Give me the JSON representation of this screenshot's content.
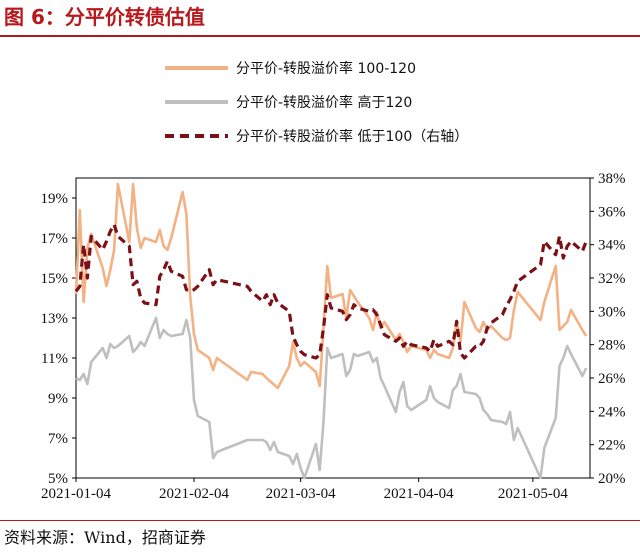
{
  "header": {
    "title": "图 6：分平价转债估值"
  },
  "footer": {
    "source": "资料来源：Wind，招商证券"
  },
  "colors": {
    "accent": "#b8171c",
    "series_100_120": "#f4b184",
    "series_above_120": "#bfbfbf",
    "series_below_100": "#7b1016"
  },
  "chart_data": {
    "type": "line",
    "title": "",
    "xlabel": "",
    "ylabel": "",
    "x_tick_labels": [
      "2021-01-04",
      "2021-02-04",
      "2021-03-04",
      "2021-04-04",
      "2021-05-04"
    ],
    "left_axis": {
      "range": [
        5,
        20
      ],
      "tick_labels": [
        "5%",
        "7%",
        "9%",
        "11%",
        "13%",
        "15%",
        "17%",
        "19%"
      ]
    },
    "right_axis": {
      "range": [
        20,
        38
      ],
      "tick_labels": [
        "20%",
        "22%",
        "24%",
        "26%",
        "28%",
        "30%",
        "32%",
        "34%",
        "36%",
        "38%"
      ]
    },
    "legend_position": "top",
    "series": [
      {
        "name": "分平价-转股溢价率 100-120",
        "axis": "left",
        "style": "solid",
        "points": [
          [
            "2021-01-04",
            14.2
          ],
          [
            "2021-01-05",
            18.4
          ],
          [
            "2021-01-06",
            13.8
          ],
          [
            "2021-01-07",
            16.5
          ],
          [
            "2021-01-08",
            17.2
          ],
          [
            "2021-01-11",
            15.5
          ],
          [
            "2021-01-12",
            14.6
          ],
          [
            "2021-01-13",
            15.4
          ],
          [
            "2021-01-14",
            16.4
          ],
          [
            "2021-01-15",
            19.7
          ],
          [
            "2021-01-18",
            16.8
          ],
          [
            "2021-01-19",
            19.7
          ],
          [
            "2021-01-20",
            17.5
          ],
          [
            "2021-01-21",
            16.5
          ],
          [
            "2021-01-22",
            17.0
          ],
          [
            "2021-01-25",
            16.8
          ],
          [
            "2021-01-26",
            17.4
          ],
          [
            "2021-01-27",
            16.6
          ],
          [
            "2021-01-28",
            16.4
          ],
          [
            "2021-01-29",
            17.0
          ],
          [
            "2021-02-01",
            19.3
          ],
          [
            "2021-02-02",
            18.2
          ],
          [
            "2021-02-03",
            14.1
          ],
          [
            "2021-02-04",
            12.2
          ],
          [
            "2021-02-05",
            11.4
          ],
          [
            "2021-02-08",
            11.0
          ],
          [
            "2021-02-09",
            10.4
          ],
          [
            "2021-02-10",
            11.0
          ],
          [
            "2021-02-18",
            9.9
          ],
          [
            "2021-02-19",
            10.3
          ],
          [
            "2021-02-22",
            10.2
          ],
          [
            "2021-02-23",
            10.0
          ],
          [
            "2021-02-26",
            9.5
          ],
          [
            "2021-03-01",
            10.6
          ],
          [
            "2021-03-02",
            11.8
          ],
          [
            "2021-03-03",
            11.0
          ],
          [
            "2021-03-04",
            10.6
          ],
          [
            "2021-03-05",
            10.8
          ],
          [
            "2021-03-08",
            10.3
          ],
          [
            "2021-03-09",
            9.6
          ],
          [
            "2021-03-10",
            12.5
          ],
          [
            "2021-03-11",
            15.6
          ],
          [
            "2021-03-12",
            14.0
          ],
          [
            "2021-03-15",
            14.2
          ],
          [
            "2021-03-16",
            13.0
          ],
          [
            "2021-03-17",
            14.4
          ],
          [
            "2021-03-18",
            14.1
          ],
          [
            "2021-03-19",
            13.8
          ],
          [
            "2021-03-22",
            13.0
          ],
          [
            "2021-03-23",
            12.4
          ],
          [
            "2021-03-24",
            13.3
          ],
          [
            "2021-03-25",
            12.5
          ],
          [
            "2021-03-26",
            12.8
          ],
          [
            "2021-03-29",
            11.9
          ],
          [
            "2021-03-30",
            12.2
          ],
          [
            "2021-03-31",
            11.8
          ],
          [
            "2021-04-01",
            11.3
          ],
          [
            "2021-04-02",
            11.6
          ],
          [
            "2021-04-06",
            11.4
          ],
          [
            "2021-04-07",
            11.0
          ],
          [
            "2021-04-08",
            11.4
          ],
          [
            "2021-04-09",
            11.2
          ],
          [
            "2021-04-12",
            11.0
          ],
          [
            "2021-04-13",
            11.5
          ],
          [
            "2021-04-14",
            12.8
          ],
          [
            "2021-04-15",
            11.8
          ],
          [
            "2021-04-16",
            13.8
          ],
          [
            "2021-04-19",
            12.5
          ],
          [
            "2021-04-20",
            12.3
          ],
          [
            "2021-04-21",
            12.8
          ],
          [
            "2021-04-22",
            12.4
          ],
          [
            "2021-04-23",
            12.6
          ],
          [
            "2021-04-26",
            12.0
          ],
          [
            "2021-04-27",
            11.9
          ],
          [
            "2021-04-28",
            12.0
          ],
          [
            "2021-04-29",
            13.4
          ],
          [
            "2021-04-30",
            14.3
          ],
          [
            "2021-05-06",
            12.9
          ],
          [
            "2021-05-07",
            13.8
          ],
          [
            "2021-05-10",
            15.6
          ],
          [
            "2021-05-11",
            12.4
          ],
          [
            "2021-05-12",
            12.6
          ],
          [
            "2021-05-13",
            12.8
          ],
          [
            "2021-05-14",
            13.4
          ],
          [
            "2021-05-17",
            12.4
          ],
          [
            "2021-05-18",
            12.1
          ]
        ]
      },
      {
        "name": "分平价-转股溢价率 高于120",
        "axis": "left",
        "style": "solid",
        "points": [
          [
            "2021-01-04",
            10.0
          ],
          [
            "2021-01-05",
            9.9
          ],
          [
            "2021-01-06",
            10.2
          ],
          [
            "2021-01-07",
            9.7
          ],
          [
            "2021-01-08",
            10.8
          ],
          [
            "2021-01-11",
            11.5
          ],
          [
            "2021-01-12",
            11.0
          ],
          [
            "2021-01-13",
            11.7
          ],
          [
            "2021-01-14",
            11.5
          ],
          [
            "2021-01-15",
            11.6
          ],
          [
            "2021-01-18",
            12.1
          ],
          [
            "2021-01-19",
            11.3
          ],
          [
            "2021-01-20",
            11.5
          ],
          [
            "2021-01-21",
            11.8
          ],
          [
            "2021-01-22",
            11.6
          ],
          [
            "2021-01-25",
            13.0
          ],
          [
            "2021-01-26",
            12.0
          ],
          [
            "2021-01-27",
            12.4
          ],
          [
            "2021-01-28",
            12.2
          ],
          [
            "2021-01-29",
            12.1
          ],
          [
            "2021-02-01",
            12.2
          ],
          [
            "2021-02-02",
            12.9
          ],
          [
            "2021-02-03",
            12.0
          ],
          [
            "2021-02-04",
            8.9
          ],
          [
            "2021-02-05",
            8.1
          ],
          [
            "2021-02-08",
            7.8
          ],
          [
            "2021-02-09",
            6.0
          ],
          [
            "2021-02-10",
            6.3
          ],
          [
            "2021-02-18",
            6.9
          ],
          [
            "2021-02-19",
            6.9
          ],
          [
            "2021-02-22",
            6.9
          ],
          [
            "2021-02-23",
            6.8
          ],
          [
            "2021-02-24",
            6.4
          ],
          [
            "2021-02-25",
            6.8
          ],
          [
            "2021-02-26",
            6.3
          ],
          [
            "2021-03-01",
            6.1
          ],
          [
            "2021-03-02",
            5.7
          ],
          [
            "2021-03-03",
            6.2
          ],
          [
            "2021-03-04",
            5.5
          ],
          [
            "2021-03-05",
            5.0
          ],
          [
            "2021-03-08",
            6.7
          ],
          [
            "2021-03-09",
            5.4
          ],
          [
            "2021-03-10",
            7.8
          ],
          [
            "2021-03-11",
            11.5
          ],
          [
            "2021-03-12",
            11.0
          ],
          [
            "2021-03-15",
            11.2
          ],
          [
            "2021-03-16",
            10.1
          ],
          [
            "2021-03-17",
            10.4
          ],
          [
            "2021-03-18",
            11.2
          ],
          [
            "2021-03-19",
            11.1
          ],
          [
            "2021-03-22",
            11.3
          ],
          [
            "2021-03-23",
            10.8
          ],
          [
            "2021-03-24",
            11.0
          ],
          [
            "2021-03-25",
            10.0
          ],
          [
            "2021-03-26",
            9.6
          ],
          [
            "2021-03-29",
            8.3
          ],
          [
            "2021-03-30",
            9.3
          ],
          [
            "2021-03-31",
            9.8
          ],
          [
            "2021-04-01",
            8.6
          ],
          [
            "2021-04-02",
            8.4
          ],
          [
            "2021-04-06",
            8.9
          ],
          [
            "2021-04-07",
            9.6
          ],
          [
            "2021-04-08",
            9.0
          ],
          [
            "2021-04-09",
            8.8
          ],
          [
            "2021-04-12",
            8.5
          ],
          [
            "2021-04-13",
            9.4
          ],
          [
            "2021-04-14",
            9.6
          ],
          [
            "2021-04-15",
            10.2
          ],
          [
            "2021-04-16",
            9.3
          ],
          [
            "2021-04-19",
            9.2
          ],
          [
            "2021-04-20",
            9.0
          ],
          [
            "2021-04-21",
            8.4
          ],
          [
            "2021-04-22",
            8.2
          ],
          [
            "2021-04-23",
            7.9
          ],
          [
            "2021-04-26",
            7.8
          ],
          [
            "2021-04-27",
            7.7
          ],
          [
            "2021-04-28",
            8.3
          ],
          [
            "2021-04-29",
            6.9
          ],
          [
            "2021-04-30",
            7.5
          ],
          [
            "2021-05-06",
            5.0
          ],
          [
            "2021-05-07",
            6.5
          ],
          [
            "2021-05-10",
            8.0
          ],
          [
            "2021-05-11",
            10.6
          ],
          [
            "2021-05-12",
            11.0
          ],
          [
            "2021-05-13",
            11.6
          ],
          [
            "2021-05-14",
            11.2
          ],
          [
            "2021-05-17",
            10.1
          ],
          [
            "2021-05-18",
            10.5
          ]
        ]
      },
      {
        "name": "分平价-转股溢价率 低于100（右轴）",
        "axis": "right",
        "style": "dashed",
        "points": [
          [
            "2021-01-04",
            31.2
          ],
          [
            "2021-01-05",
            31.5
          ],
          [
            "2021-01-06",
            34.0
          ],
          [
            "2021-01-07",
            32.0
          ],
          [
            "2021-01-08",
            34.5
          ],
          [
            "2021-01-11",
            33.7
          ],
          [
            "2021-01-12",
            34.2
          ],
          [
            "2021-01-13",
            34.8
          ],
          [
            "2021-01-14",
            35.2
          ],
          [
            "2021-01-15",
            34.5
          ],
          [
            "2021-01-18",
            33.9
          ],
          [
            "2021-01-19",
            31.6
          ],
          [
            "2021-01-20",
            31.8
          ],
          [
            "2021-01-21",
            30.8
          ],
          [
            "2021-01-22",
            30.5
          ],
          [
            "2021-01-25",
            30.4
          ],
          [
            "2021-01-26",
            32.1
          ],
          [
            "2021-01-27",
            32.5
          ],
          [
            "2021-01-28",
            33.0
          ],
          [
            "2021-01-29",
            32.4
          ],
          [
            "2021-02-01",
            32.1
          ],
          [
            "2021-02-02",
            31.3
          ],
          [
            "2021-02-03",
            31.2
          ],
          [
            "2021-02-04",
            31.3
          ],
          [
            "2021-02-05",
            31.5
          ],
          [
            "2021-02-08",
            32.5
          ],
          [
            "2021-02-09",
            31.6
          ],
          [
            "2021-02-10",
            31.9
          ],
          [
            "2021-02-18",
            31.5
          ],
          [
            "2021-02-19",
            31.2
          ],
          [
            "2021-02-22",
            30.6
          ],
          [
            "2021-02-23",
            31.0
          ],
          [
            "2021-02-24",
            30.4
          ],
          [
            "2021-02-25",
            31.0
          ],
          [
            "2021-02-26",
            30.5
          ],
          [
            "2021-03-01",
            30.0
          ],
          [
            "2021-03-02",
            28.5
          ],
          [
            "2021-03-03",
            28.0
          ],
          [
            "2021-03-04",
            27.6
          ],
          [
            "2021-03-05",
            27.4
          ],
          [
            "2021-03-08",
            27.2
          ],
          [
            "2021-03-09",
            27.4
          ],
          [
            "2021-03-10",
            29.0
          ],
          [
            "2021-03-11",
            31.0
          ],
          [
            "2021-03-12",
            30.2
          ],
          [
            "2021-03-15",
            30.0
          ],
          [
            "2021-03-16",
            29.5
          ],
          [
            "2021-03-17",
            29.8
          ],
          [
            "2021-03-18",
            30.4
          ],
          [
            "2021-03-19",
            30.2
          ],
          [
            "2021-03-22",
            30.0
          ],
          [
            "2021-03-23",
            30.1
          ],
          [
            "2021-03-24",
            29.8
          ],
          [
            "2021-03-25",
            29.2
          ],
          [
            "2021-03-26",
            28.6
          ],
          [
            "2021-03-29",
            28.2
          ],
          [
            "2021-03-30",
            28.4
          ],
          [
            "2021-03-31",
            27.9
          ],
          [
            "2021-04-01",
            28.2
          ],
          [
            "2021-04-02",
            28.0
          ],
          [
            "2021-04-06",
            27.8
          ],
          [
            "2021-04-07",
            27.6
          ],
          [
            "2021-04-08",
            28.3
          ],
          [
            "2021-04-09",
            27.9
          ],
          [
            "2021-04-12",
            28.2
          ],
          [
            "2021-04-13",
            28.0
          ],
          [
            "2021-04-14",
            29.4
          ],
          [
            "2021-04-15",
            27.5
          ],
          [
            "2021-04-16",
            27.2
          ],
          [
            "2021-04-19",
            27.9
          ],
          [
            "2021-04-20",
            27.9
          ],
          [
            "2021-04-21",
            28.2
          ],
          [
            "2021-04-22",
            29.0
          ],
          [
            "2021-04-23",
            29.3
          ],
          [
            "2021-04-26",
            29.8
          ],
          [
            "2021-04-27",
            30.3
          ],
          [
            "2021-04-28",
            30.7
          ],
          [
            "2021-04-29",
            31.2
          ],
          [
            "2021-04-30",
            31.8
          ],
          [
            "2021-05-06",
            32.8
          ],
          [
            "2021-05-07",
            34.2
          ],
          [
            "2021-05-10",
            33.4
          ],
          [
            "2021-05-11",
            34.5
          ],
          [
            "2021-05-12",
            33.2
          ],
          [
            "2021-05-13",
            33.9
          ],
          [
            "2021-05-14",
            34.2
          ],
          [
            "2021-05-17",
            33.6
          ],
          [
            "2021-05-18",
            34.2
          ]
        ]
      }
    ]
  }
}
